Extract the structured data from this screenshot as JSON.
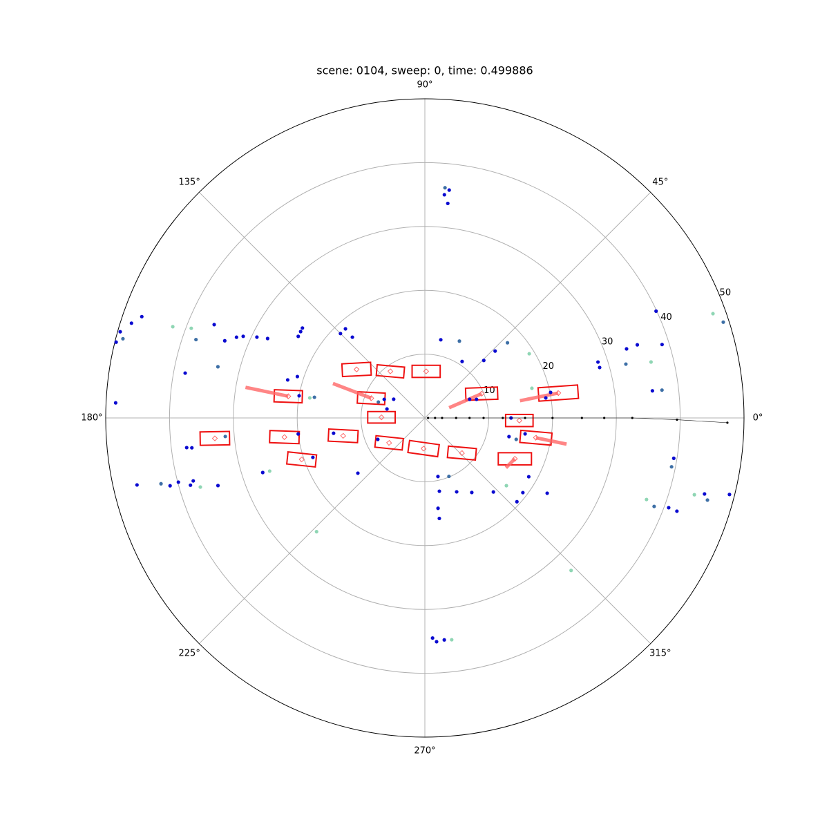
{
  "chart_data": {
    "type": "polar-scatter",
    "title": "scene: 0104, sweep: 0, time: 0.499886",
    "rlim": [
      0,
      50
    ],
    "rticks": [
      10,
      20,
      30,
      40,
      50
    ],
    "rlabel_angle": 22.5,
    "thetaticks": [
      {
        "value": 0,
        "label": "0°"
      },
      {
        "value": 45,
        "label": "45°"
      },
      {
        "value": 90,
        "label": "90°"
      },
      {
        "value": 135,
        "label": "135°"
      },
      {
        "value": 180,
        "label": "180°"
      },
      {
        "value": 225,
        "label": "225°"
      },
      {
        "value": 270,
        "label": "270°"
      },
      {
        "value": 315,
        "label": "315°"
      }
    ],
    "grid": true,
    "series": [
      {
        "color": "#0a0ad0",
        "theta": [
          83.9,
          85.0,
          83.9,
          272.0,
          273.0,
          275.0,
          166.2,
          164.2,
          162.1,
          160.3,
          177.2,
          156.1,
          158.9,
          156.8,
          155.8,
          154.3,
          153.2,
          169.4,
          145.2,
          147.2,
          143.7,
          164.5,
          162.0,
          170.0,
          187.1,
          187.3,
          193.1,
          194.9,
          194.6,
          196.0,
          195.2,
          198.1,
          198.6,
          199.4,
          219.5,
          189.5,
          187.2,
          135.0,
          131.7,
          131.9,
          155.4,
          149.0,
          166.7,
          204.5,
          78.5,
          56.6,
          44.3,
          43.6,
          22.6,
          19.8,
          11.5,
          9.4,
          17.9,
          16.1,
          18.9,
          19.0,
          17.2,
          24.8,
          6.8,
          0,
          347.5,
          351.0,
          330.5,
          322.7,
          317.7,
          328.4,
          312.8,
          302.2,
          293.3,
          281.2,
          282.6,
          278.2,
          278.3,
          350.8,
          339.8,
          339.7,
          344.8,
          345.9
        ],
        "r": [
          35.9,
          35.1,
          33.8,
          34.5,
          35.1,
          34.9,
          49.8,
          49.6,
          48.3,
          47.1,
          48.5,
          36.1,
          33.6,
          32.1,
          31.2,
          29.2,
          27.6,
          38.2,
          23.7,
          23.6,
          23.8,
          22.3,
          21.0,
          20.0,
          37.6,
          36.8,
          46.3,
          41.3,
          39.9,
          38.2,
          37.6,
          34.1,
          26.8,
          18.6,
          13.6,
          14.5,
          20.0,
          18.7,
          18.7,
          17.0,
          7.0,
          5.7,
          6.1,
          8.1,
          12.5,
          10.6,
          12.9,
          15.2,
          7.6,
          8.6,
          20.1,
          19.2,
          28.5,
          28.5,
          33.4,
          35.2,
          38.9,
          39.9,
          35.9,
          13.5,
          13.5,
          15.9,
          18.7,
          19.3,
          19.5,
          22.5,
          15.8,
          13.8,
          12.6,
          11.7,
          9.4,
          15.9,
          14.3,
          39.5,
          40.7,
          42.1,
          45.4,
          49.2
        ]
      },
      {
        "color": "#3d6fa6",
        "theta": [
          85.0,
          165.3,
          161.1,
          166.1,
          194.0,
          185.3,
          169.4,
          161.1,
          65.8,
          42.3,
          15.0,
          6.7,
          338.9,
          17.8,
          348.8,
          292.4,
          346.8,
          343.8
        ],
        "r": [
          36.2,
          48.9,
          37.9,
          33.4,
          42.6,
          31.4,
          17.6,
          7.7,
          13.2,
          17.5,
          32.6,
          37.4,
          38.5,
          49.1,
          39.4,
          9.9,
          14.7,
          46.1
        ]
      },
      {
        "color": "#8fd6b4",
        "theta": [
          160.1,
          159.0,
          170.1,
          197.1,
          198.9,
          226.4,
          31.6,
          15.5,
          13.9,
          19.9,
          320.3,
          313.8,
          339.8,
          344.1,
          276.9
        ],
        "r": [
          42.0,
          39.2,
          18.3,
          36.8,
          25.7,
          24.6,
          19.2,
          17.4,
          36.5,
          48.0,
          16.6,
          33.1,
          37.0,
          43.9,
          35.0
        ]
      },
      {
        "color": "#000000",
        "line": true,
        "theta": [
          0,
          0,
          0,
          0,
          0,
          0,
          0,
          0,
          0,
          0,
          0,
          0,
          359.6,
          359.1
        ],
        "r": [
          0.5,
          1.6,
          2.7,
          4.9,
          7.0,
          9.2,
          12.2,
          15.7,
          20.0,
          24.6,
          28.1,
          32.5,
          39.5,
          47.4
        ]
      }
    ],
    "box_color": "#ee1111",
    "velocity_color": "#ff6666",
    "boxes": [
      {
        "x": -10.7,
        "y": 7.6,
        "length": 4.5,
        "width": 2.0,
        "angle": 3,
        "velocity": [
          0,
          0
        ]
      },
      {
        "x": -5.4,
        "y": 7.3,
        "length": 4.3,
        "width": 1.7,
        "angle": -5,
        "velocity": [
          0,
          0
        ]
      },
      {
        "x": 0.2,
        "y": 7.3,
        "length": 4.4,
        "width": 1.9,
        "angle": 0,
        "velocity": [
          0,
          0
        ]
      },
      {
        "x": -21.4,
        "y": 3.4,
        "length": 4.4,
        "width": 1.9,
        "angle": -2,
        "velocity": [
          -6.7,
          1.4
        ]
      },
      {
        "x": -8.4,
        "y": 3.1,
        "length": 4.3,
        "width": 1.8,
        "angle": -3,
        "velocity": [
          -6.0,
          2.3
        ]
      },
      {
        "x": 8.9,
        "y": 3.8,
        "length": 5.0,
        "width": 1.9,
        "angle": 2,
        "velocity": [
          -5.1,
          -2.2
        ]
      },
      {
        "x": 20.9,
        "y": 3.9,
        "length": 6.2,
        "width": 2.1,
        "angle": 4,
        "velocity": [
          -6.0,
          -1.2
        ]
      },
      {
        "x": -6.8,
        "y": 0.1,
        "length": 4.3,
        "width": 1.8,
        "angle": 0,
        "velocity": [
          0,
          0
        ]
      },
      {
        "x": 14.8,
        "y": -0.4,
        "length": 4.3,
        "width": 1.9,
        "angle": 0,
        "velocity": [
          0,
          0
        ]
      },
      {
        "x": -32.9,
        "y": -3.2,
        "length": 4.6,
        "width": 2.1,
        "angle": 1,
        "velocity": [
          0,
          0
        ]
      },
      {
        "x": -22.0,
        "y": -3.0,
        "length": 4.6,
        "width": 1.9,
        "angle": -2,
        "velocity": [
          0,
          0
        ]
      },
      {
        "x": -12.8,
        "y": -2.8,
        "length": 4.6,
        "width": 1.9,
        "angle": -3,
        "velocity": [
          0,
          0
        ]
      },
      {
        "x": -5.6,
        "y": -3.9,
        "length": 4.3,
        "width": 1.8,
        "angle": -6,
        "velocity": [
          0,
          0
        ]
      },
      {
        "x": -0.2,
        "y": -4.8,
        "length": 4.7,
        "width": 1.9,
        "angle": -8,
        "velocity": [
          0,
          0
        ]
      },
      {
        "x": 5.8,
        "y": -5.5,
        "length": 4.4,
        "width": 1.8,
        "angle": -5,
        "velocity": [
          0,
          0
        ]
      },
      {
        "x": 17.4,
        "y": -3.1,
        "length": 4.9,
        "width": 1.9,
        "angle": -5,
        "velocity": [
          4.8,
          -1.0
        ]
      },
      {
        "x": -19.3,
        "y": -6.5,
        "length": 4.5,
        "width": 1.9,
        "angle": -6,
        "velocity": [
          0,
          0
        ]
      },
      {
        "x": 14.1,
        "y": -6.4,
        "length": 5.2,
        "width": 1.9,
        "angle": 0,
        "velocity": [
          -1.4,
          -1.4
        ]
      }
    ]
  }
}
